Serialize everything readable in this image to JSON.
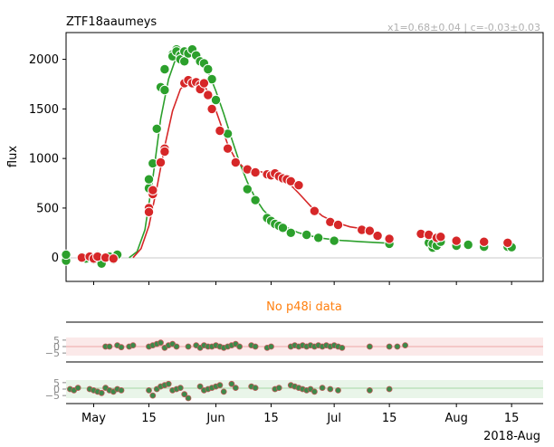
{
  "chart_data": {
    "type": "scatter",
    "title": "ZTF18aaumeys",
    "annotation": "x1=0.68±0.04 | c=-0.03±0.03",
    "ylabel": "flux",
    "x_axis_label": "2018-Aug",
    "x_unit": "days since 2018-05-01",
    "x_ticks": [
      {
        "x": 0,
        "label": "May"
      },
      {
        "x": 14,
        "label": "15"
      },
      {
        "x": 31,
        "label": "Jun"
      },
      {
        "x": 45,
        "label": "15"
      },
      {
        "x": 61,
        "label": "Jul"
      },
      {
        "x": 75,
        "label": "15"
      },
      {
        "x": 92,
        "label": "Aug"
      },
      {
        "x": 106,
        "label": "15"
      }
    ],
    "xlim": [
      -7,
      114
    ],
    "ylim": [
      -240,
      2270
    ],
    "y_ticks": [
      0,
      500,
      1000,
      1500,
      2000
    ],
    "series": [
      {
        "name": "ztf_g",
        "color": "#2ca02c",
        "points": [
          [
            -7,
            -30
          ],
          [
            -7,
            30
          ],
          [
            -3,
            10
          ],
          [
            -2,
            -10
          ],
          [
            0,
            -20
          ],
          [
            1,
            20
          ],
          [
            2,
            -60
          ],
          [
            4,
            10
          ],
          [
            5,
            -20
          ],
          [
            6,
            30
          ],
          [
            14,
            700
          ],
          [
            14,
            790
          ],
          [
            15,
            950
          ],
          [
            16,
            1300
          ],
          [
            17,
            1720
          ],
          [
            18,
            1690
          ],
          [
            18,
            1900
          ],
          [
            20,
            2050
          ],
          [
            20,
            2030
          ],
          [
            21,
            2100
          ],
          [
            21,
            2080
          ],
          [
            22,
            2040
          ],
          [
            22,
            2000
          ],
          [
            23,
            1980
          ],
          [
            23,
            2080
          ],
          [
            24,
            2060
          ],
          [
            25,
            2100
          ],
          [
            26,
            2040
          ],
          [
            27,
            1980
          ],
          [
            28,
            1960
          ],
          [
            29,
            1900
          ],
          [
            30,
            1800
          ],
          [
            31,
            1590
          ],
          [
            34,
            1250
          ],
          [
            36,
            960
          ],
          [
            39,
            690
          ],
          [
            41,
            580
          ],
          [
            44,
            400
          ],
          [
            45,
            370
          ],
          [
            46,
            340
          ],
          [
            47,
            320
          ],
          [
            48,
            300
          ],
          [
            50,
            250
          ],
          [
            54,
            230
          ],
          [
            57,
            200
          ],
          [
            61,
            170
          ],
          [
            75,
            140
          ],
          [
            85,
            150
          ],
          [
            86,
            100
          ],
          [
            86,
            140
          ],
          [
            87,
            120
          ],
          [
            88,
            160
          ],
          [
            92,
            120
          ],
          [
            95,
            130
          ],
          [
            99,
            110
          ],
          [
            105,
            110
          ],
          [
            106,
            105
          ]
        ]
      },
      {
        "name": "ztf_r",
        "color": "#d62728",
        "points": [
          [
            -3,
            0
          ],
          [
            -1,
            10
          ],
          [
            0,
            -10
          ],
          [
            1,
            10
          ],
          [
            3,
            0
          ],
          [
            5,
            -10
          ],
          [
            14,
            500
          ],
          [
            14,
            460
          ],
          [
            15,
            640
          ],
          [
            15,
            680
          ],
          [
            17,
            960
          ],
          [
            18,
            1100
          ],
          [
            18,
            1070
          ],
          [
            23,
            1760
          ],
          [
            24,
            1790
          ],
          [
            25,
            1760
          ],
          [
            26,
            1770
          ],
          [
            27,
            1740
          ],
          [
            27,
            1700
          ],
          [
            28,
            1760
          ],
          [
            29,
            1640
          ],
          [
            30,
            1500
          ],
          [
            32,
            1280
          ],
          [
            34,
            1100
          ],
          [
            36,
            960
          ],
          [
            39,
            890
          ],
          [
            41,
            860
          ],
          [
            44,
            840
          ],
          [
            45,
            830
          ],
          [
            46,
            850
          ],
          [
            47,
            820
          ],
          [
            48,
            800
          ],
          [
            49,
            790
          ],
          [
            50,
            770
          ],
          [
            52,
            730
          ],
          [
            56,
            470
          ],
          [
            60,
            360
          ],
          [
            62,
            330
          ],
          [
            68,
            280
          ],
          [
            70,
            270
          ],
          [
            72,
            220
          ],
          [
            75,
            190
          ],
          [
            83,
            240
          ],
          [
            85,
            230
          ],
          [
            87,
            200
          ],
          [
            88,
            210
          ],
          [
            92,
            170
          ],
          [
            99,
            160
          ],
          [
            105,
            150
          ]
        ]
      }
    ],
    "models": [
      {
        "name": "ztf_g_model",
        "color": "#2ca02c",
        "curve": [
          [
            9,
            0
          ],
          [
            11,
            60
          ],
          [
            13,
            280
          ],
          [
            15,
            800
          ],
          [
            17,
            1400
          ],
          [
            19,
            1800
          ],
          [
            21,
            2030
          ],
          [
            23,
            2090
          ],
          [
            25,
            2080
          ],
          [
            27,
            2010
          ],
          [
            29,
            1880
          ],
          [
            31,
            1680
          ],
          [
            33,
            1450
          ],
          [
            35,
            1200
          ],
          [
            37,
            960
          ],
          [
            39,
            760
          ],
          [
            41,
            600
          ],
          [
            43,
            480
          ],
          [
            45,
            400
          ],
          [
            48,
            320
          ],
          [
            52,
            250
          ],
          [
            57,
            200
          ],
          [
            62,
            175
          ],
          [
            68,
            160
          ],
          [
            75,
            145
          ]
        ]
      },
      {
        "name": "ztf_r_model",
        "color": "#d62728",
        "curve": [
          [
            10,
            0
          ],
          [
            12,
            90
          ],
          [
            14,
            320
          ],
          [
            16,
            700
          ],
          [
            18,
            1120
          ],
          [
            20,
            1480
          ],
          [
            22,
            1700
          ],
          [
            24,
            1780
          ],
          [
            26,
            1780
          ],
          [
            28,
            1740
          ],
          [
            30,
            1600
          ],
          [
            32,
            1370
          ],
          [
            34,
            1140
          ],
          [
            36,
            990
          ],
          [
            38,
            910
          ],
          [
            40,
            880
          ],
          [
            42,
            870
          ],
          [
            44,
            850
          ],
          [
            46,
            830
          ],
          [
            48,
            790
          ],
          [
            50,
            730
          ],
          [
            52,
            650
          ],
          [
            55,
            520
          ],
          [
            58,
            420
          ],
          [
            61,
            360
          ],
          [
            65,
            310
          ],
          [
            70,
            280
          ]
        ]
      }
    ],
    "p48i_notice": "No p48i data",
    "residuals": [
      {
        "name": "ztf_r_residual",
        "band_color": "#d62728",
        "ylim": [
          -7,
          7
        ],
        "y_ticks": [
          5,
          0,
          -5
        ],
        "points": [
          [
            3,
            0
          ],
          [
            4,
            0
          ],
          [
            6,
            1
          ],
          [
            7,
            -0.5
          ],
          [
            9,
            0
          ],
          [
            10,
            1
          ],
          [
            14,
            0
          ],
          [
            15,
            1
          ],
          [
            16,
            2
          ],
          [
            17,
            3
          ],
          [
            18,
            -1
          ],
          [
            19,
            1
          ],
          [
            20,
            2
          ],
          [
            21,
            0
          ],
          [
            24,
            0
          ],
          [
            26,
            1
          ],
          [
            27,
            -1
          ],
          [
            28,
            1
          ],
          [
            29,
            0
          ],
          [
            30,
            0
          ],
          [
            31,
            1
          ],
          [
            32,
            0
          ],
          [
            33,
            -1
          ],
          [
            34,
            0
          ],
          [
            35,
            1
          ],
          [
            36,
            2
          ],
          [
            37,
            0
          ],
          [
            40,
            1
          ],
          [
            41,
            0
          ],
          [
            44,
            -1
          ],
          [
            45,
            0
          ],
          [
            50,
            0
          ],
          [
            51,
            1
          ],
          [
            52,
            0
          ],
          [
            53,
            1
          ],
          [
            54,
            0
          ],
          [
            55,
            1
          ],
          [
            56,
            0
          ],
          [
            57,
            1
          ],
          [
            58,
            0
          ],
          [
            59,
            1
          ],
          [
            60,
            0
          ],
          [
            61,
            1
          ],
          [
            62,
            0
          ],
          [
            63,
            -1
          ],
          [
            70,
            0
          ],
          [
            75,
            0
          ],
          [
            77,
            0
          ],
          [
            79,
            1
          ]
        ]
      },
      {
        "name": "ztf_g_residual",
        "band_color": "#2ca02c",
        "ylim": [
          -7,
          7
        ],
        "y_ticks": [
          5,
          0,
          -5
        ],
        "points": [
          [
            -6,
            0
          ],
          [
            -5,
            -1
          ],
          [
            -4,
            1
          ],
          [
            -1,
            0
          ],
          [
            0,
            -1
          ],
          [
            1,
            -2
          ],
          [
            2,
            -3
          ],
          [
            3,
            1
          ],
          [
            4,
            -1
          ],
          [
            5,
            -2
          ],
          [
            6,
            0
          ],
          [
            7,
            -1
          ],
          [
            14,
            -1
          ],
          [
            15,
            -5
          ],
          [
            16,
            0
          ],
          [
            17,
            2
          ],
          [
            18,
            3
          ],
          [
            19,
            4
          ],
          [
            20,
            -1
          ],
          [
            21,
            0
          ],
          [
            22,
            1
          ],
          [
            23,
            -4
          ],
          [
            24,
            -7
          ],
          [
            27,
            2
          ],
          [
            28,
            -1
          ],
          [
            29,
            0
          ],
          [
            30,
            1
          ],
          [
            31,
            2
          ],
          [
            32,
            3
          ],
          [
            33,
            -2
          ],
          [
            35,
            4
          ],
          [
            36,
            1
          ],
          [
            40,
            2
          ],
          [
            41,
            1
          ],
          [
            46,
            0
          ],
          [
            47,
            1
          ],
          [
            50,
            3
          ],
          [
            51,
            2
          ],
          [
            52,
            1
          ],
          [
            53,
            0
          ],
          [
            54,
            -1
          ],
          [
            55,
            0
          ],
          [
            56,
            -2
          ],
          [
            58,
            1
          ],
          [
            60,
            0
          ],
          [
            62,
            -1
          ],
          [
            70,
            -1
          ],
          [
            75,
            0
          ]
        ]
      }
    ],
    "grid": false
  }
}
